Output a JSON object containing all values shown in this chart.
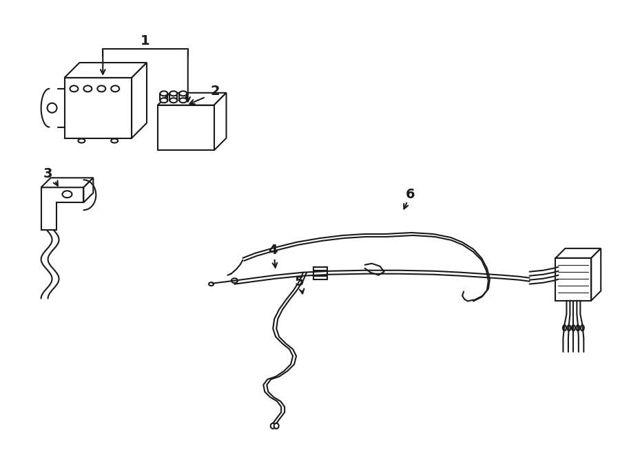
{
  "bg_color": "#ffffff",
  "line_color": "#1a1a1a",
  "text_color": "#1a1a1a",
  "fig_width": 9.0,
  "fig_height": 6.61,
  "dpi": 100
}
